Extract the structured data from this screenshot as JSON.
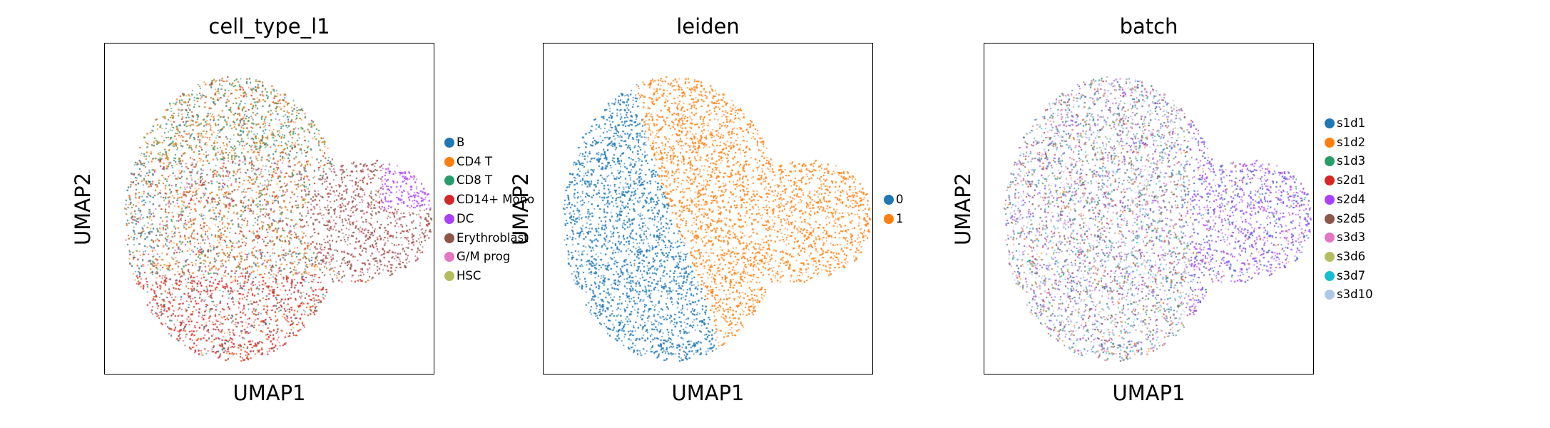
{
  "figure": {
    "x_label": "UMAP1",
    "y_label": "UMAP2"
  },
  "chart_data": [
    {
      "type": "scatter",
      "title": "cell_type_l1",
      "xlabel": "UMAP1",
      "ylabel": "UMAP2",
      "grid": false,
      "legend_placement": "right",
      "legend": [
        "B",
        "CD4 T",
        "CD8 T",
        "CD14+ Mono",
        "DC",
        "Erythroblast",
        "G/M prog",
        "HSC"
      ],
      "colors": [
        "#1f77b4",
        "#ff7f0e",
        "#279e68",
        "#d62728",
        "#aa40fc",
        "#8c564b",
        "#e377c2",
        "#b5bd61"
      ],
      "regions": [
        "B spread, left edge",
        "CD4 T upper-left",
        "CD8 T top",
        "CD14+ Mono bottom",
        "DC sparse",
        "Erythroblast right lobe",
        "G/M prog sparse",
        "HSC sparse"
      ]
    },
    {
      "type": "scatter",
      "title": "leiden",
      "xlabel": "UMAP1",
      "ylabel": "UMAP2",
      "grid": false,
      "legend_placement": "right",
      "legend": [
        "0",
        "1"
      ],
      "colors": [
        "#1f77b4",
        "#ff7f0e"
      ],
      "regions": [
        "0 left half",
        "1 right half incl. right lobe"
      ]
    },
    {
      "type": "scatter",
      "title": "batch",
      "xlabel": "UMAP1",
      "ylabel": "UMAP2",
      "grid": false,
      "legend_placement": "right",
      "legend": [
        "s1d1",
        "s1d2",
        "s1d3",
        "s2d1",
        "s2d4",
        "s2d5",
        "s3d3",
        "s3d6",
        "s3d7",
        "s3d10"
      ],
      "colors": [
        "#1f77b4",
        "#ff7f0e",
        "#279e68",
        "#d62728",
        "#aa40fc",
        "#8c564b",
        "#e377c2",
        "#b5bd61",
        "#17becf",
        "#aec7e8"
      ],
      "regions": [
        "all batches mixed across main body",
        "right lobe mostly s2d4 purple and s1d1 blue"
      ]
    }
  ]
}
